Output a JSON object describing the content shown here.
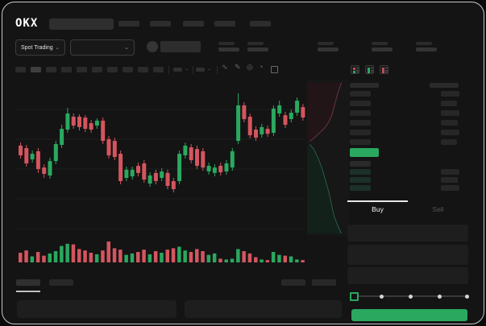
{
  "brand": {
    "logo_text": "OKX"
  },
  "icons": {
    "chevron_down": "⌄",
    "line_style": "∿",
    "draw": "✎",
    "camera": "◎",
    "history": "◔"
  },
  "header": {
    "nav_placeholder_count": 5,
    "search_placeholder": "",
    "pair_selector_label": "Spot Trading",
    "ticker_stat_count": 5
  },
  "chart_toolbar": {
    "timeframe_count": 10,
    "active_timeframe_index": 1,
    "dropdown_count": 2,
    "action_icons": [
      "line-style-icon",
      "draw-icon",
      "camera-icon",
      "history-icon",
      "fullscreen-icon"
    ]
  },
  "chart_data": {
    "type": "candlestick",
    "title": "",
    "grid": "horizontal-faint",
    "x_axis": {
      "labels_visible": false
    },
    "y_axis": {
      "labels_visible": false,
      "range": [
        0,
        100
      ]
    },
    "colors": {
      "up": "#2aa85f",
      "down": "#d4555f"
    },
    "candles": [
      [
        59,
        61,
        50.5,
        52.6
      ],
      [
        57.4,
        59.5,
        45.3,
        47.4
      ],
      [
        50,
        55.8,
        47.9,
        53.7
      ],
      [
        55.3,
        57.4,
        41,
        43.7
      ],
      [
        44.7,
        46.8,
        37.9,
        40.5
      ],
      [
        39.5,
        51,
        37.4,
        48.9
      ],
      [
        48.9,
        62.1,
        46.8,
        60
      ],
      [
        59.5,
        72.6,
        57.4,
        70
      ],
      [
        69.5,
        83.7,
        67.4,
        80
      ],
      [
        77.9,
        80,
        70,
        72.1
      ],
      [
        77.9,
        79.5,
        68.9,
        71.1
      ],
      [
        77.4,
        78.9,
        67.9,
        70
      ],
      [
        73.7,
        75.8,
        67.4,
        69.5
      ],
      [
        72.1,
        76.8,
        70,
        75.3
      ],
      [
        75.3,
        77.4,
        60,
        62.1
      ],
      [
        63.2,
        65.3,
        50.5,
        52.6
      ],
      [
        62.1,
        64.2,
        49.5,
        51.6
      ],
      [
        53.7,
        55.8,
        33.7,
        35.8
      ],
      [
        37.9,
        45.3,
        35.8,
        43.2
      ],
      [
        38.9,
        45.3,
        36.8,
        43.2
      ],
      [
        45.8,
        47.9,
        38.9,
        41.1
      ],
      [
        47.4,
        49.5,
        34.7,
        36.8
      ],
      [
        34.2,
        41.6,
        32.1,
        39.5
      ],
      [
        41.1,
        43.2,
        33.7,
        35.8
      ],
      [
        37.9,
        44.2,
        35.8,
        42.1
      ],
      [
        41.1,
        43.2,
        30.5,
        32.6
      ],
      [
        35.8,
        37.9,
        28.4,
        30.5
      ],
      [
        35.8,
        55.8,
        33.7,
        53.7
      ],
      [
        52.6,
        61,
        50.5,
        59
      ],
      [
        57.9,
        60,
        47.4,
        49.5
      ],
      [
        56.8,
        59,
        43.7,
        45.8
      ],
      [
        55.3,
        57.4,
        42.6,
        44.7
      ],
      [
        42.1,
        47.9,
        40,
        45.8
      ],
      [
        41.1,
        46.8,
        38.9,
        44.7
      ],
      [
        45.8,
        47.9,
        39.5,
        41.6
      ],
      [
        42.1,
        49.5,
        40,
        47.4
      ],
      [
        44.7,
        57.4,
        42.6,
        55.3
      ],
      [
        62.1,
        93.2,
        60,
        85.3
      ],
      [
        85.3,
        87.4,
        74.2,
        76.3
      ],
      [
        77.9,
        80,
        63.7,
        65.8
      ],
      [
        69.5,
        71.6,
        62.1,
        64.2
      ],
      [
        66.3,
        73.2,
        64.2,
        71.1
      ],
      [
        70,
        72.1,
        64.7,
        66.8
      ],
      [
        67.4,
        85.3,
        65.3,
        83.2
      ],
      [
        80,
        88.4,
        77.9,
        85.3
      ],
      [
        78.9,
        81.1,
        70.5,
        72.6
      ],
      [
        76.3,
        82.6,
        74.2,
        80.5
      ],
      [
        80.5,
        90.5,
        78.4,
        88.4
      ],
      [
        84.2,
        86.3,
        75.3,
        77.4
      ]
    ],
    "volume": [
      46,
      57,
      29,
      50,
      32,
      43,
      54,
      79,
      89,
      86,
      64,
      57,
      46,
      39,
      57,
      100,
      68,
      61,
      36,
      43,
      50,
      61,
      39,
      54,
      46,
      61,
      68,
      75,
      57,
      50,
      64,
      54,
      36,
      43,
      18,
      14,
      18,
      64,
      54,
      43,
      25,
      14,
      11,
      50,
      36,
      32,
      29,
      14,
      11
    ],
    "depth_chart": {
      "orientation": "vertical",
      "ask_line": [
        [
          0.82,
          0.02
        ],
        [
          0.74,
          0.08
        ],
        [
          0.67,
          0.15
        ],
        [
          0.6,
          0.22
        ],
        [
          0.52,
          0.27
        ],
        [
          0.42,
          0.31
        ],
        [
          0.3,
          0.34
        ],
        [
          0.18,
          0.37
        ],
        [
          0.07,
          0.395
        ]
      ],
      "bid_line": [
        [
          0.07,
          0.415
        ],
        [
          0.16,
          0.445
        ],
        [
          0.26,
          0.5
        ],
        [
          0.36,
          0.57
        ],
        [
          0.44,
          0.645
        ],
        [
          0.52,
          0.72
        ],
        [
          0.58,
          0.795
        ],
        [
          0.64,
          0.87
        ],
        [
          0.73,
          0.935
        ],
        [
          0.82,
          0.985
        ]
      ],
      "ask_color": "#7a3b44",
      "bid_color": "#2e6e52",
      "ask_fill": "#221518",
      "bid_fill": "#122119"
    }
  },
  "order_book": {
    "view_mode_icons": [
      "book-combined-icon",
      "book-bids-icon",
      "book-asks-icon"
    ],
    "column_header_count": 2,
    "ask_row_count": 6,
    "bid_row_count": 4,
    "bid_rows_with_size": 3,
    "ask_size_widths": [
      23,
      20,
      23,
      21,
      23,
      20
    ],
    "bid_size_widths": [
      23,
      21,
      23
    ],
    "last_price_color": "#2aa85f"
  },
  "trade_panel": {
    "buy_tab_label": "Buy",
    "sell_tab_label": "Sell",
    "field_count": 3,
    "slider": {
      "dot_count": 5,
      "handle_index": 0,
      "positions_pct": [
        0,
        25,
        50,
        75,
        100
      ]
    },
    "buy_button_color": "#2aa85f"
  },
  "bottom_bar": {
    "tab_count": 2,
    "active_tab_index": 0,
    "right_button_count": 2,
    "panel_count": 2
  }
}
